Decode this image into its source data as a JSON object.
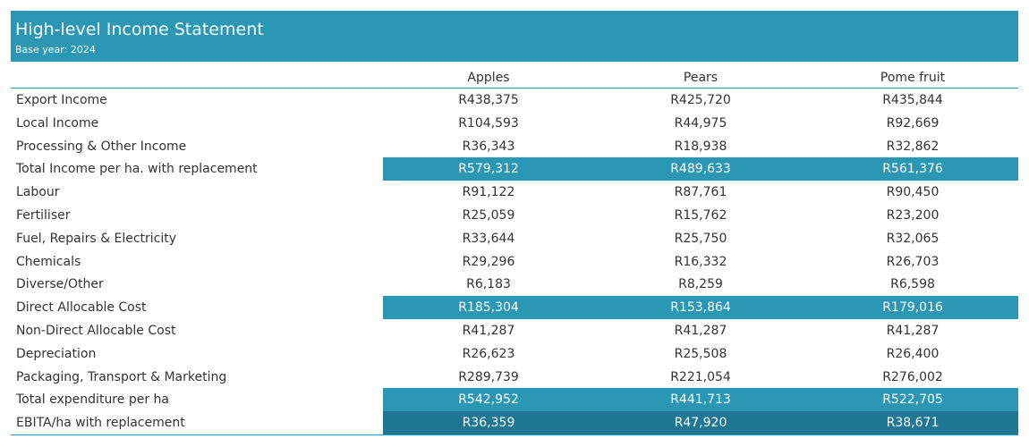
{
  "header": {
    "title": "High-level Income Statement",
    "subtitle": "Base year: 2024"
  },
  "columns": [
    "Apples",
    "Pears",
    "Pome fruit"
  ],
  "colors": {
    "header_bg": "#2a97b5",
    "highlight_bg": "#2a97b5",
    "dark_highlight_bg": "#1e7793"
  },
  "rows": [
    {
      "label": "Export Income",
      "values": [
        "R438,375",
        "R425,720",
        "R435,844"
      ],
      "style": "normal"
    },
    {
      "label": "Local Income",
      "values": [
        "R104,593",
        "R44,975",
        "R92,669"
      ],
      "style": "normal"
    },
    {
      "label": "Processing & Other Income",
      "values": [
        "R36,343",
        "R18,938",
        "R32,862"
      ],
      "style": "normal"
    },
    {
      "label": "Total Income per ha. with replacement",
      "values": [
        "R579,312",
        "R489,633",
        "R561,376"
      ],
      "style": "highlight"
    },
    {
      "label": "Labour",
      "values": [
        "R91,122",
        "R87,761",
        "R90,450"
      ],
      "style": "normal"
    },
    {
      "label": "Fertiliser",
      "values": [
        "R25,059",
        "R15,762",
        "R23,200"
      ],
      "style": "normal"
    },
    {
      "label": "Fuel, Repairs & Electricity",
      "values": [
        "R33,644",
        "R25,750",
        "R32,065"
      ],
      "style": "normal"
    },
    {
      "label": "Chemicals",
      "values": [
        "R29,296",
        "R16,332",
        "R26,703"
      ],
      "style": "normal"
    },
    {
      "label": "Diverse/Other",
      "values": [
        "R6,183",
        "R8,259",
        "R6,598"
      ],
      "style": "normal"
    },
    {
      "label": "Direct Allocable Cost",
      "values": [
        "R185,304",
        "R153,864",
        "R179,016"
      ],
      "style": "highlight"
    },
    {
      "label": "Non-Direct Allocable Cost",
      "values": [
        "R41,287",
        "R41,287",
        "R41,287"
      ],
      "style": "normal"
    },
    {
      "label": "Depreciation",
      "values": [
        "R26,623",
        "R25,508",
        "R26,400"
      ],
      "style": "normal"
    },
    {
      "label": "Packaging, Transport & Marketing",
      "values": [
        "R289,739",
        "R221,054",
        "R276,002"
      ],
      "style": "normal"
    },
    {
      "label": "Total expenditure per ha",
      "values": [
        "R542,952",
        "R441,713",
        "R522,705"
      ],
      "style": "highlight"
    },
    {
      "label": "EBITA/ha with replacement",
      "values": [
        "R36,359",
        "R47,920",
        "R38,671"
      ],
      "style": "dark"
    }
  ]
}
